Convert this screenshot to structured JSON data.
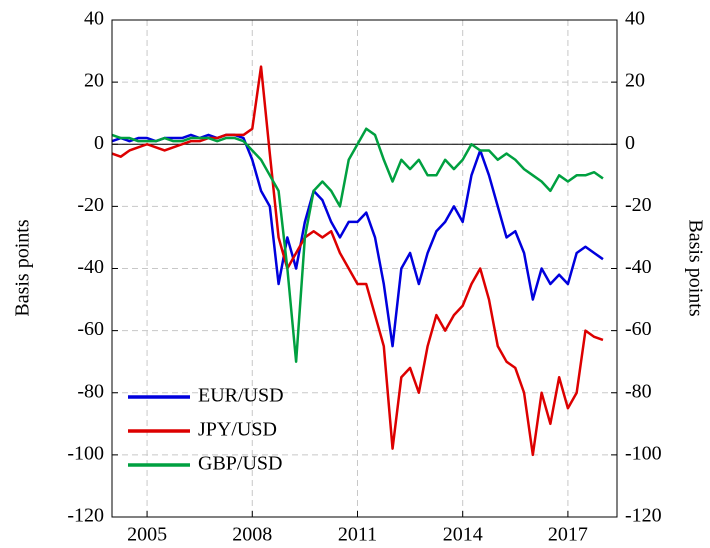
{
  "chart_data": {
    "type": "line",
    "y_label": "Basis points",
    "y2_label": "Basis points",
    "x": [
      2004,
      2004.25,
      2004.5,
      2004.75,
      2005,
      2005.25,
      2005.5,
      2005.75,
      2006,
      2006.25,
      2006.5,
      2006.75,
      2007,
      2007.25,
      2007.5,
      2007.75,
      2008,
      2008.25,
      2008.5,
      2008.75,
      2009,
      2009.25,
      2009.5,
      2009.75,
      2010,
      2010.25,
      2010.5,
      2010.75,
      2011,
      2011.25,
      2011.5,
      2011.75,
      2012,
      2012.25,
      2012.5,
      2012.75,
      2013,
      2013.25,
      2013.5,
      2013.75,
      2014,
      2014.25,
      2014.5,
      2014.75,
      2015,
      2015.25,
      2015.5,
      2015.75,
      2016,
      2016.25,
      2016.5,
      2016.75,
      2017,
      2017.25,
      2017.5,
      2017.75,
      2018
    ],
    "series": [
      {
        "name": "EUR/USD",
        "color": "#0000dd",
        "values": [
          1,
          2,
          1,
          2,
          2,
          1,
          2,
          2,
          2,
          3,
          2,
          3,
          2,
          3,
          3,
          2,
          -5,
          -15,
          -20,
          -45,
          -30,
          -40,
          -25,
          -15,
          -18,
          -25,
          -30,
          -25,
          -25,
          -22,
          -30,
          -45,
          -65,
          -40,
          -35,
          -45,
          -35,
          -28,
          -25,
          -20,
          -25,
          -10,
          -2,
          -10,
          -20,
          -30,
          -28,
          -35,
          -50,
          -40,
          -45,
          -42,
          -45,
          -35,
          -33,
          -35,
          -37
        ]
      },
      {
        "name": "JPY/USD",
        "color": "#dd0000",
        "values": [
          -3,
          -4,
          -2,
          -1,
          0,
          -1,
          -2,
          -1,
          0,
          1,
          1,
          2,
          2,
          3,
          3,
          3,
          5,
          25,
          -3,
          -30,
          -40,
          -35,
          -30,
          -28,
          -30,
          -28,
          -35,
          -40,
          -45,
          -45,
          -55,
          -65,
          -98,
          -75,
          -72,
          -80,
          -65,
          -55,
          -60,
          -55,
          -52,
          -45,
          -40,
          -50,
          -65,
          -70,
          -72,
          -80,
          -100,
          -80,
          -90,
          -75,
          -85,
          -80,
          -60,
          -62,
          -63
        ]
      },
      {
        "name": "GBP/USD",
        "color": "#00a040",
        "values": [
          3,
          2,
          2,
          1,
          1,
          1,
          2,
          1,
          1,
          2,
          2,
          2,
          1,
          2,
          2,
          1,
          -2,
          -5,
          -10,
          -15,
          -40,
          -70,
          -30,
          -15,
          -12,
          -15,
          -20,
          -5,
          0,
          5,
          3,
          -5,
          -12,
          -5,
          -8,
          -5,
          -10,
          -10,
          -5,
          -8,
          -5,
          0,
          -2,
          -2,
          -5,
          -3,
          -5,
          -8,
          -10,
          -12,
          -15,
          -10,
          -12,
          -10,
          -10,
          -9,
          -11
        ]
      }
    ],
    "xlim": [
      2004,
      2018.4
    ],
    "xticks": [
      2005,
      2008,
      2011,
      2014,
      2017
    ],
    "ylim": [
      -120,
      40
    ],
    "yticks": [
      -120,
      -100,
      -80,
      -60,
      -40,
      -20,
      0,
      20,
      40
    ],
    "y2lim": [
      -120,
      40
    ],
    "y2ticks": [
      -120,
      -100,
      -80,
      -60,
      -40,
      -20,
      0,
      20,
      40
    ],
    "hline": 0,
    "grid": true,
    "legend": "lower left"
  }
}
